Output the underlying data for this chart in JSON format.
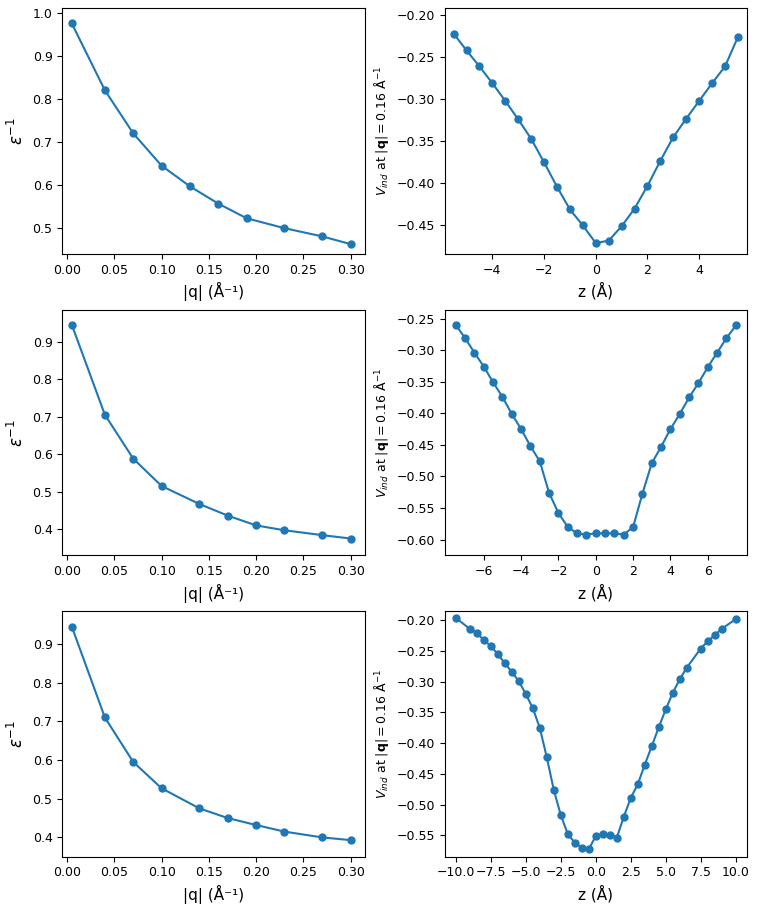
{
  "color": "#1f77b4",
  "panels": [
    {
      "left": {
        "xlabel": "|q| (Å⁻¹)",
        "x": [
          0.005,
          0.04,
          0.07,
          0.1,
          0.13,
          0.16,
          0.19,
          0.23,
          0.27,
          0.3
        ],
        "y": [
          0.975,
          0.82,
          0.72,
          0.645,
          0.597,
          0.557,
          0.523,
          0.5,
          0.481,
          0.463
        ],
        "xlim": [
          -0.005,
          0.315
        ],
        "ylim": [
          0.44,
          1.01
        ],
        "yticks": [
          0.5,
          0.6,
          0.7,
          0.8,
          0.9,
          1.0
        ],
        "xticks": [
          0.0,
          0.05,
          0.1,
          0.15,
          0.2,
          0.25,
          0.3
        ]
      },
      "right": {
        "xlabel": "z (Å)",
        "x": [
          -5.5,
          -5.0,
          -4.5,
          -4.0,
          -3.5,
          -3.0,
          -2.5,
          -2.0,
          -1.5,
          -1.0,
          -0.5,
          0.0,
          0.5,
          1.0,
          1.5,
          2.0,
          2.5,
          3.0,
          3.5,
          4.0,
          4.5,
          5.0,
          5.5
        ],
        "y": [
          -0.222,
          -0.242,
          -0.261,
          -0.281,
          -0.302,
          -0.324,
          -0.347,
          -0.375,
          -0.404,
          -0.431,
          -0.45,
          -0.471,
          -0.468,
          -0.451,
          -0.43,
          -0.403,
          -0.373,
          -0.345,
          -0.323,
          -0.302,
          -0.281,
          -0.261,
          -0.226
        ],
        "xlim": [
          -5.85,
          5.85
        ],
        "ylim": [
          -0.484,
          -0.192
        ],
        "yticks": [
          -0.45,
          -0.4,
          -0.35,
          -0.3,
          -0.25,
          -0.2
        ],
        "xticks": [
          -4,
          -2,
          0,
          2,
          4
        ]
      }
    },
    {
      "left": {
        "xlabel": "|q| (Å⁻¹)",
        "x": [
          0.005,
          0.04,
          0.07,
          0.1,
          0.14,
          0.17,
          0.2,
          0.23,
          0.27,
          0.3
        ],
        "y": [
          0.945,
          0.705,
          0.588,
          0.515,
          0.467,
          0.436,
          0.41,
          0.397,
          0.384,
          0.375
        ],
        "xlim": [
          -0.005,
          0.315
        ],
        "ylim": [
          0.33,
          0.985
        ],
        "yticks": [
          0.4,
          0.5,
          0.6,
          0.7,
          0.8,
          0.9
        ],
        "xticks": [
          0.0,
          0.05,
          0.1,
          0.15,
          0.2,
          0.25,
          0.3
        ]
      },
      "right": {
        "xlabel": "z (Å)",
        "x": [
          -7.5,
          -7.0,
          -6.5,
          -6.0,
          -5.5,
          -5.0,
          -4.5,
          -4.0,
          -3.5,
          -3.0,
          -2.5,
          -2.0,
          -1.5,
          -1.0,
          -0.5,
          0.0,
          0.5,
          1.0,
          1.5,
          2.0,
          2.5,
          3.0,
          3.5,
          4.0,
          4.5,
          5.0,
          5.5,
          6.0,
          6.5,
          7.0,
          7.5
        ],
        "y": [
          -0.26,
          -0.281,
          -0.304,
          -0.326,
          -0.351,
          -0.374,
          -0.401,
          -0.425,
          -0.452,
          -0.476,
          -0.526,
          -0.558,
          -0.58,
          -0.59,
          -0.592,
          -0.59,
          -0.59,
          -0.59,
          -0.592,
          -0.58,
          -0.527,
          -0.479,
          -0.453,
          -0.425,
          -0.401,
          -0.375,
          -0.352,
          -0.327,
          -0.304,
          -0.281,
          -0.261
        ],
        "xlim": [
          -8.1,
          8.1
        ],
        "ylim": [
          -0.625,
          -0.236
        ],
        "yticks": [
          -0.6,
          -0.55,
          -0.5,
          -0.45,
          -0.4,
          -0.35,
          -0.3,
          -0.25
        ],
        "xticks": [
          -6,
          -4,
          -2,
          0,
          2,
          4,
          6
        ]
      }
    },
    {
      "left": {
        "xlabel": "|q| (Å⁻¹)",
        "x": [
          0.005,
          0.04,
          0.07,
          0.1,
          0.14,
          0.17,
          0.2,
          0.23,
          0.27,
          0.3
        ],
        "y": [
          0.945,
          0.71,
          0.595,
          0.527,
          0.475,
          0.45,
          0.432,
          0.415,
          0.4,
          0.393
        ],
        "xlim": [
          -0.005,
          0.315
        ],
        "ylim": [
          0.35,
          0.985
        ],
        "yticks": [
          0.4,
          0.5,
          0.6,
          0.7,
          0.8,
          0.9
        ],
        "xticks": [
          0.0,
          0.05,
          0.1,
          0.15,
          0.2,
          0.25,
          0.3
        ]
      },
      "right": {
        "xlabel": "z (Å)",
        "x": [
          -10.0,
          -9.0,
          -8.5,
          -8.0,
          -7.5,
          -7.0,
          -6.5,
          -6.0,
          -5.5,
          -5.0,
          -4.5,
          -4.0,
          -3.5,
          -3.0,
          -2.5,
          -2.0,
          -1.5,
          -1.0,
          -0.5,
          0.0,
          0.5,
          1.0,
          1.5,
          2.0,
          2.5,
          3.0,
          3.5,
          4.0,
          4.5,
          5.0,
          5.5,
          6.0,
          6.5,
          7.5,
          8.0,
          8.5,
          9.0,
          10.0
        ],
        "y": [
          -0.196,
          -0.214,
          -0.221,
          -0.232,
          -0.242,
          -0.255,
          -0.27,
          -0.284,
          -0.299,
          -0.32,
          -0.343,
          -0.375,
          -0.423,
          -0.476,
          -0.517,
          -0.548,
          -0.562,
          -0.57,
          -0.573,
          -0.551,
          -0.548,
          -0.549,
          -0.554,
          -0.52,
          -0.489,
          -0.467,
          -0.435,
          -0.405,
          -0.374,
          -0.345,
          -0.318,
          -0.296,
          -0.277,
          -0.246,
          -0.234,
          -0.224,
          -0.214,
          -0.198
        ],
        "xlim": [
          -10.8,
          10.8
        ],
        "ylim": [
          -0.585,
          -0.185
        ],
        "yticks": [
          -0.55,
          -0.5,
          -0.45,
          -0.4,
          -0.35,
          -0.3,
          -0.25,
          -0.2
        ],
        "xticks": [
          -10.0,
          -7.5,
          -5.0,
          -2.5,
          0.0,
          2.5,
          5.0,
          7.5,
          10.0
        ]
      }
    }
  ]
}
